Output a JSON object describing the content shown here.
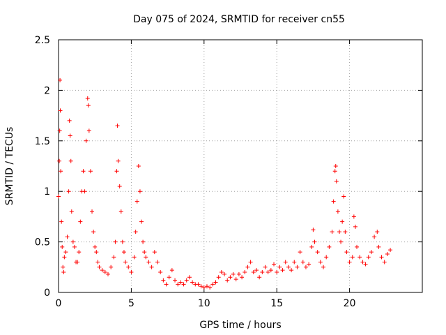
{
  "chart_data": {
    "type": "scatter",
    "title": "Day 075 of 2024, SRMTID for receiver cn55",
    "xlabel": "GPS time / hours",
    "ylabel": "SRMTID / TECUs",
    "xlim": [
      0,
      25
    ],
    "ylim": [
      0,
      2.5
    ],
    "xticks": [
      0,
      5,
      10,
      15,
      20
    ],
    "xtick_labels": [
      "0",
      "5",
      "10",
      "15",
      "20"
    ],
    "yticks": [
      0,
      0.5,
      1,
      1.5,
      2,
      2.5
    ],
    "ytick_labels": [
      "0",
      "0.5",
      "1",
      "1.5",
      "2",
      "2.5"
    ],
    "grid": true,
    "marker": "plus",
    "color": "#ff0000",
    "series": [
      {
        "name": "SRMTID",
        "points": [
          [
            0.0,
            0.95
          ],
          [
            0.05,
            1.3
          ],
          [
            0.08,
            1.6
          ],
          [
            0.1,
            2.1
          ],
          [
            0.12,
            1.8
          ],
          [
            0.15,
            1.2
          ],
          [
            0.2,
            0.7
          ],
          [
            0.25,
            0.45
          ],
          [
            0.3,
            0.25
          ],
          [
            0.35,
            0.2
          ],
          [
            0.4,
            0.35
          ],
          [
            0.5,
            0.4
          ],
          [
            0.6,
            0.55
          ],
          [
            0.7,
            1.0
          ],
          [
            0.75,
            1.7
          ],
          [
            0.8,
            1.55
          ],
          [
            0.85,
            1.3
          ],
          [
            0.9,
            0.8
          ],
          [
            1.0,
            0.5
          ],
          [
            1.1,
            0.45
          ],
          [
            1.2,
            0.3
          ],
          [
            1.3,
            0.3
          ],
          [
            1.4,
            0.4
          ],
          [
            1.5,
            0.7
          ],
          [
            1.6,
            1.0
          ],
          [
            1.7,
            1.2
          ],
          [
            1.8,
            1.0
          ],
          [
            1.9,
            1.5
          ],
          [
            2.0,
            1.92
          ],
          [
            2.05,
            1.85
          ],
          [
            2.1,
            1.6
          ],
          [
            2.2,
            1.2
          ],
          [
            2.3,
            0.8
          ],
          [
            2.4,
            0.6
          ],
          [
            2.5,
            0.45
          ],
          [
            2.6,
            0.4
          ],
          [
            2.7,
            0.3
          ],
          [
            2.8,
            0.25
          ],
          [
            3.0,
            0.22
          ],
          [
            3.2,
            0.2
          ],
          [
            3.4,
            0.18
          ],
          [
            3.6,
            0.25
          ],
          [
            3.8,
            0.35
          ],
          [
            3.9,
            0.5
          ],
          [
            4.0,
            1.2
          ],
          [
            4.05,
            1.65
          ],
          [
            4.1,
            1.3
          ],
          [
            4.2,
            1.05
          ],
          [
            4.3,
            0.8
          ],
          [
            4.4,
            0.5
          ],
          [
            4.5,
            0.4
          ],
          [
            4.6,
            0.3
          ],
          [
            4.8,
            0.25
          ],
          [
            5.0,
            0.2
          ],
          [
            5.2,
            0.35
          ],
          [
            5.3,
            0.6
          ],
          [
            5.4,
            0.9
          ],
          [
            5.5,
            1.25
          ],
          [
            5.6,
            1.0
          ],
          [
            5.7,
            0.7
          ],
          [
            5.8,
            0.5
          ],
          [
            5.9,
            0.4
          ],
          [
            6.0,
            0.35
          ],
          [
            6.2,
            0.3
          ],
          [
            6.4,
            0.25
          ],
          [
            6.6,
            0.4
          ],
          [
            6.8,
            0.3
          ],
          [
            7.0,
            0.2
          ],
          [
            7.2,
            0.12
          ],
          [
            7.4,
            0.08
          ],
          [
            7.6,
            0.15
          ],
          [
            7.8,
            0.22
          ],
          [
            8.0,
            0.12
          ],
          [
            8.2,
            0.08
          ],
          [
            8.4,
            0.1
          ],
          [
            8.6,
            0.08
          ],
          [
            8.8,
            0.12
          ],
          [
            9.0,
            0.15
          ],
          [
            9.2,
            0.1
          ],
          [
            9.4,
            0.08
          ],
          [
            9.6,
            0.08
          ],
          [
            9.8,
            0.06
          ],
          [
            10.0,
            0.05
          ],
          [
            10.2,
            0.06
          ],
          [
            10.4,
            0.05
          ],
          [
            10.6,
            0.08
          ],
          [
            10.8,
            0.1
          ],
          [
            11.0,
            0.15
          ],
          [
            11.2,
            0.2
          ],
          [
            11.4,
            0.18
          ],
          [
            11.6,
            0.12
          ],
          [
            11.8,
            0.15
          ],
          [
            12.0,
            0.18
          ],
          [
            12.2,
            0.13
          ],
          [
            12.4,
            0.18
          ],
          [
            12.6,
            0.15
          ],
          [
            12.8,
            0.2
          ],
          [
            13.0,
            0.25
          ],
          [
            13.2,
            0.3
          ],
          [
            13.4,
            0.2
          ],
          [
            13.6,
            0.22
          ],
          [
            13.8,
            0.15
          ],
          [
            14.0,
            0.2
          ],
          [
            14.2,
            0.25
          ],
          [
            14.4,
            0.2
          ],
          [
            14.6,
            0.22
          ],
          [
            14.8,
            0.28
          ],
          [
            15.0,
            0.2
          ],
          [
            15.2,
            0.25
          ],
          [
            15.4,
            0.22
          ],
          [
            15.6,
            0.3
          ],
          [
            15.8,
            0.25
          ],
          [
            16.0,
            0.22
          ],
          [
            16.2,
            0.3
          ],
          [
            16.4,
            0.25
          ],
          [
            16.6,
            0.4
          ],
          [
            16.8,
            0.3
          ],
          [
            17.0,
            0.25
          ],
          [
            17.2,
            0.28
          ],
          [
            17.4,
            0.45
          ],
          [
            17.5,
            0.62
          ],
          [
            17.6,
            0.5
          ],
          [
            17.8,
            0.4
          ],
          [
            18.0,
            0.3
          ],
          [
            18.2,
            0.25
          ],
          [
            18.4,
            0.35
          ],
          [
            18.6,
            0.45
          ],
          [
            18.8,
            0.6
          ],
          [
            18.9,
            0.9
          ],
          [
            19.0,
            1.2
          ],
          [
            19.05,
            1.25
          ],
          [
            19.1,
            1.1
          ],
          [
            19.2,
            0.8
          ],
          [
            19.3,
            0.6
          ],
          [
            19.4,
            0.5
          ],
          [
            19.5,
            0.7
          ],
          [
            19.6,
            0.95
          ],
          [
            19.7,
            0.6
          ],
          [
            19.8,
            0.4
          ],
          [
            20.0,
            0.3
          ],
          [
            20.2,
            0.35
          ],
          [
            20.3,
            0.75
          ],
          [
            20.4,
            0.65
          ],
          [
            20.5,
            0.45
          ],
          [
            20.7,
            0.35
          ],
          [
            20.9,
            0.3
          ],
          [
            21.1,
            0.28
          ],
          [
            21.3,
            0.35
          ],
          [
            21.5,
            0.4
          ],
          [
            21.7,
            0.55
          ],
          [
            21.9,
            0.6
          ],
          [
            22.0,
            0.45
          ],
          [
            22.2,
            0.35
          ],
          [
            22.4,
            0.3
          ],
          [
            22.6,
            0.38
          ],
          [
            22.8,
            0.42
          ]
        ]
      }
    ]
  }
}
